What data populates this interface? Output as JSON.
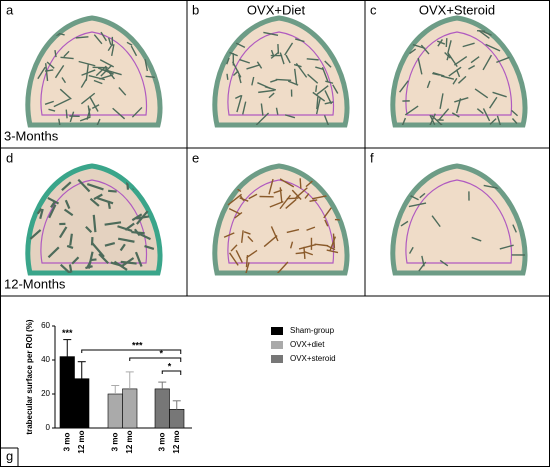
{
  "panels": {
    "labels": [
      "a",
      "b",
      "c",
      "d",
      "e",
      "f",
      "g"
    ],
    "columns": [
      "OVX+Diet",
      "OVX+Steroid"
    ],
    "rows": [
      "3-Months",
      "12-Months"
    ]
  },
  "chart_data": {
    "type": "bar",
    "ylabel": "trabecular surface per ROI (%)",
    "categories": [
      "3 mo",
      "12 mo"
    ],
    "series": [
      {
        "name": "Sham-group",
        "color": "#000000",
        "values": [
          42,
          29
        ],
        "errors": [
          10,
          10
        ]
      },
      {
        "name": "OVX+diet",
        "color": "#aaaaaa",
        "values": [
          20,
          23
        ],
        "errors": [
          5,
          10
        ]
      },
      {
        "name": "OVX+steroid",
        "color": "#777777",
        "values": [
          23,
          11
        ],
        "errors": [
          4,
          5
        ]
      }
    ],
    "ylim": [
      0,
      60
    ],
    "yticks": [
      0,
      20,
      40,
      60
    ],
    "annotations": [
      "***",
      "***",
      "*",
      "*"
    ]
  }
}
